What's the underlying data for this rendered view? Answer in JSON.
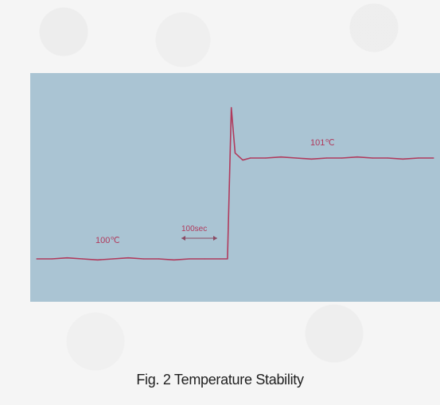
{
  "chart_data": {
    "type": "line",
    "title": "",
    "xlabel": "",
    "ylabel": "",
    "series": [
      {
        "name": "",
        "x": [
          0,
          40,
          80,
          120,
          160,
          200,
          240,
          280,
          320,
          360,
          400,
          440,
          480,
          500,
          510,
          520,
          540,
          560,
          600,
          640,
          680,
          720,
          760,
          800,
          840,
          880,
          920,
          960,
          1000,
          1040
        ],
        "y": [
          100.0,
          100.0,
          100.01,
          100.0,
          99.99,
          100.0,
          100.01,
          100.0,
          100.0,
          99.99,
          100.0,
          100.0,
          100.0,
          100.0,
          101.5,
          101.05,
          100.98,
          101.0,
          101.0,
          101.01,
          101.0,
          100.99,
          101.0,
          101.0,
          101.01,
          101.0,
          101.0,
          100.99,
          101.0,
          101.0
        ]
      }
    ],
    "annotations": {
      "low_temp": "100℃",
      "high_temp": "101℃",
      "scale_bar": "100sec"
    },
    "scale_bar_seconds": 100,
    "grid": false,
    "legend": "none",
    "background_color": "#aac4d3",
    "line_color": "#b03a5c"
  },
  "caption": "Fig. 2 Temperature Stability"
}
